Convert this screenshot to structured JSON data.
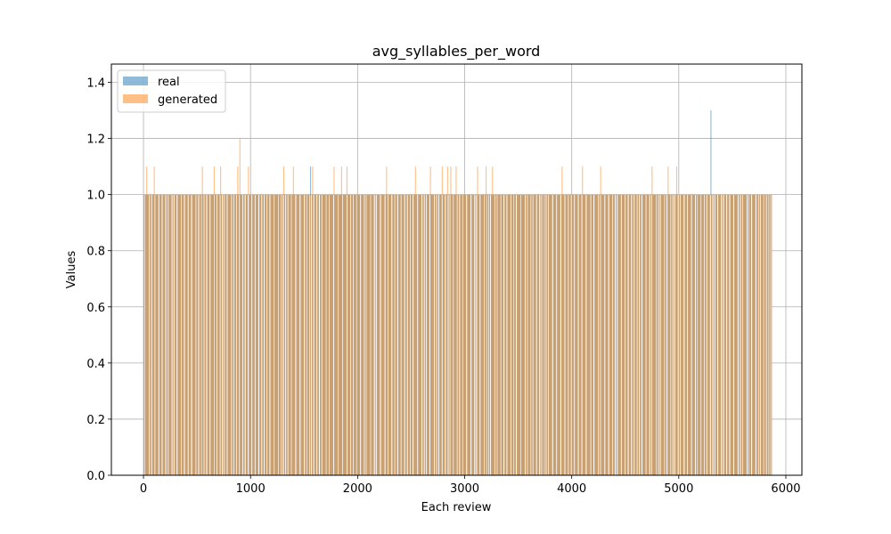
{
  "chart_data": {
    "type": "bar",
    "title": "avg_syllables_per_word",
    "xlabel": "Each review",
    "ylabel": "Values",
    "xlim": [
      -300,
      6150
    ],
    "ylim": [
      0,
      1.465
    ],
    "xticks": [
      0,
      1000,
      2000,
      3000,
      4000,
      5000,
      6000
    ],
    "yticks": [
      0.0,
      0.2,
      0.4,
      0.6,
      0.8,
      1.0,
      1.2,
      1.4
    ],
    "xtick_labels": [
      "0",
      "1000",
      "2000",
      "3000",
      "4000",
      "5000",
      "6000"
    ],
    "ytick_labels": [
      "0.0",
      "0.2",
      "0.4",
      "0.6",
      "0.8",
      "1.0",
      "1.2",
      "1.4"
    ],
    "grid": true,
    "legend_position": "upper-left",
    "n_bars": 5870,
    "base_value": 1.0,
    "series": [
      {
        "name": "real",
        "color": "#1f77b4",
        "alpha": 0.5,
        "outliers": [
          [
            1560,
            1.1
          ],
          [
            5300,
            1.3
          ]
        ]
      },
      {
        "name": "generated",
        "color": "#ff7f0e",
        "alpha": 0.5,
        "outliers": [
          [
            30,
            1.1
          ],
          [
            100,
            1.1
          ],
          [
            550,
            1.1
          ],
          [
            660,
            1.1
          ],
          [
            720,
            1.1
          ],
          [
            880,
            1.1
          ],
          [
            900,
            1.2
          ],
          [
            980,
            1.1
          ],
          [
            1310,
            1.1
          ],
          [
            1400,
            1.1
          ],
          [
            1580,
            1.1
          ],
          [
            1780,
            1.1
          ],
          [
            1850,
            1.1
          ],
          [
            1900,
            1.1
          ],
          [
            2270,
            1.1
          ],
          [
            2540,
            1.1
          ],
          [
            2680,
            1.1
          ],
          [
            2790,
            1.1
          ],
          [
            2840,
            1.1
          ],
          [
            2870,
            1.1
          ],
          [
            2920,
            1.1
          ],
          [
            3120,
            1.1
          ],
          [
            3200,
            1.1
          ],
          [
            3260,
            1.1
          ],
          [
            3910,
            1.1
          ],
          [
            4100,
            1.1
          ],
          [
            4270,
            1.1
          ],
          [
            4750,
            1.1
          ],
          [
            4900,
            1.1
          ],
          [
            4980,
            1.1
          ]
        ]
      }
    ]
  }
}
